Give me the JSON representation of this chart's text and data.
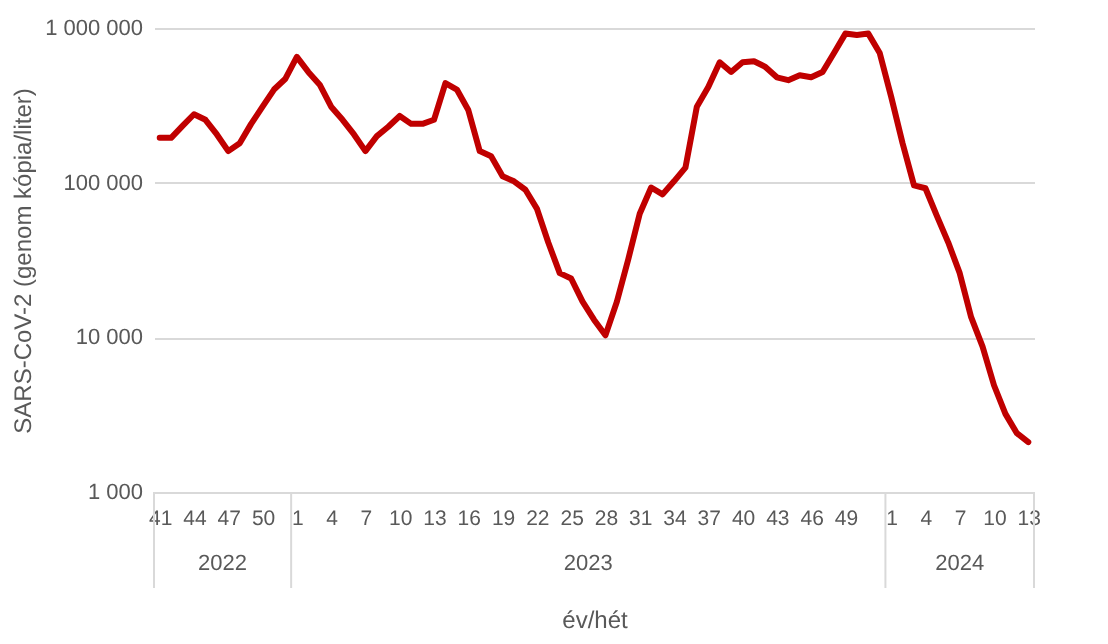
{
  "chart_data": {
    "type": "line",
    "xlabel": "év/hét",
    "ylabel": "SARS-CoV-2 (genom kópia/liter)",
    "categories": [
      "41",
      null,
      null,
      "44",
      null,
      null,
      "47",
      null,
      null,
      "50",
      null,
      null,
      "1",
      null,
      null,
      "4",
      null,
      null,
      "7",
      null,
      null,
      "10",
      null,
      null,
      "13",
      null,
      null,
      "16",
      null,
      null,
      "19",
      null,
      null,
      "22",
      null,
      null,
      "25",
      null,
      null,
      "28",
      null,
      null,
      "31",
      null,
      null,
      "34",
      null,
      null,
      "37",
      null,
      null,
      "40",
      null,
      null,
      "43",
      null,
      null,
      "46",
      null,
      null,
      "49",
      null,
      null,
      null,
      "1",
      null,
      null,
      "4",
      null,
      null,
      "7",
      null,
      null,
      "10",
      null,
      null,
      "13"
    ],
    "series": [
      {
        "color": "#c00000",
        "values": [
          195000,
          195000,
          233000,
          277000,
          255000,
          205000,
          160000,
          180000,
          240000,
          310000,
          400000,
          470000,
          650000,
          520000,
          430000,
          310000,
          255000,
          205000,
          160000,
          200000,
          230000,
          270000,
          240000,
          240000,
          255000,
          440000,
          400000,
          295000,
          160000,
          148000,
          110000,
          102000,
          90000,
          68000,
          41000,
          26000,
          24000,
          17000,
          13000,
          10300,
          17000,
          32000,
          63000,
          93000,
          84000,
          102000,
          125000,
          310000,
          415000,
          600000,
          520000,
          600000,
          610000,
          560000,
          480000,
          460000,
          495000,
          480000,
          520000,
          690000,
          920000,
          900000,
          920000,
          690000,
          360000,
          180000,
          96000,
          92000,
          61000,
          41000,
          26000,
          13500,
          8700,
          4900,
          3200,
          2400,
          2100
        ]
      }
    ],
    "annotations": [
      "2022",
      "2023",
      "2024"
    ],
    "ylim": [
      1000,
      1000000
    ],
    "yticks": [
      {
        "value": 1000,
        "label": "1 000"
      },
      {
        "value": 10000,
        "label": "10 000"
      },
      {
        "value": 100000,
        "label": "100 000"
      },
      {
        "value": 1000000,
        "label": "1 000 000"
      }
    ],
    "log": true,
    "grid": "y"
  }
}
